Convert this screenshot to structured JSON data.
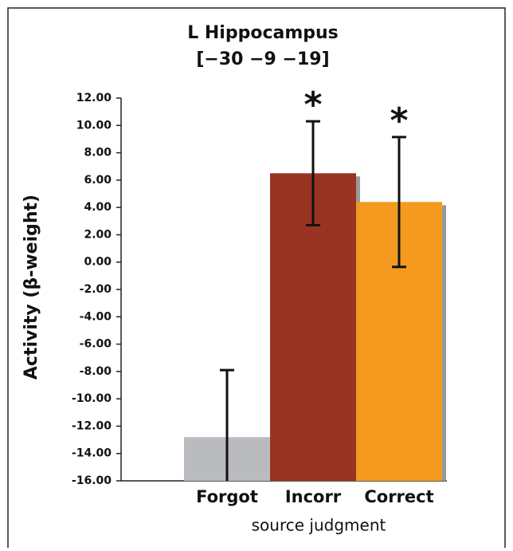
{
  "chart_data": {
    "type": "bar",
    "title": "L Hippocampus",
    "subtitle": "[−30 −9 −19]",
    "ylabel": "Activity (β-weight)",
    "xlabel": "source judgment",
    "categories": [
      "Forgot",
      "Incorr",
      "Correct"
    ],
    "values": [
      -12.8,
      6.5,
      4.4
    ],
    "errors": [
      4.9,
      3.8,
      4.75
    ],
    "markers": [
      null,
      "*",
      "*"
    ],
    "colors": [
      "#b9bbbe",
      "#993322",
      "#f39a1f"
    ],
    "ylim": [
      -16,
      12
    ],
    "yticks": [
      {
        "value": -16,
        "label": "-16.00"
      },
      {
        "value": -14,
        "label": "-14.00"
      },
      {
        "value": -12,
        "label": "-12.00"
      },
      {
        "value": -10,
        "label": "-10.00"
      },
      {
        "value": -8,
        "label": "-8.00"
      },
      {
        "value": -6,
        "label": "-6.00"
      },
      {
        "value": -4,
        "label": "-4.00"
      },
      {
        "value": -2,
        "label": "-2.00"
      },
      {
        "value": 0,
        "label": "0.00"
      },
      {
        "value": 2,
        "label": "2.00"
      },
      {
        "value": 4,
        "label": "4.00"
      },
      {
        "value": 6,
        "label": "6.00"
      },
      {
        "value": 8,
        "label": "8.00"
      },
      {
        "value": 10,
        "label": "10.00"
      },
      {
        "value": 12,
        "label": "12.00"
      }
    ]
  }
}
